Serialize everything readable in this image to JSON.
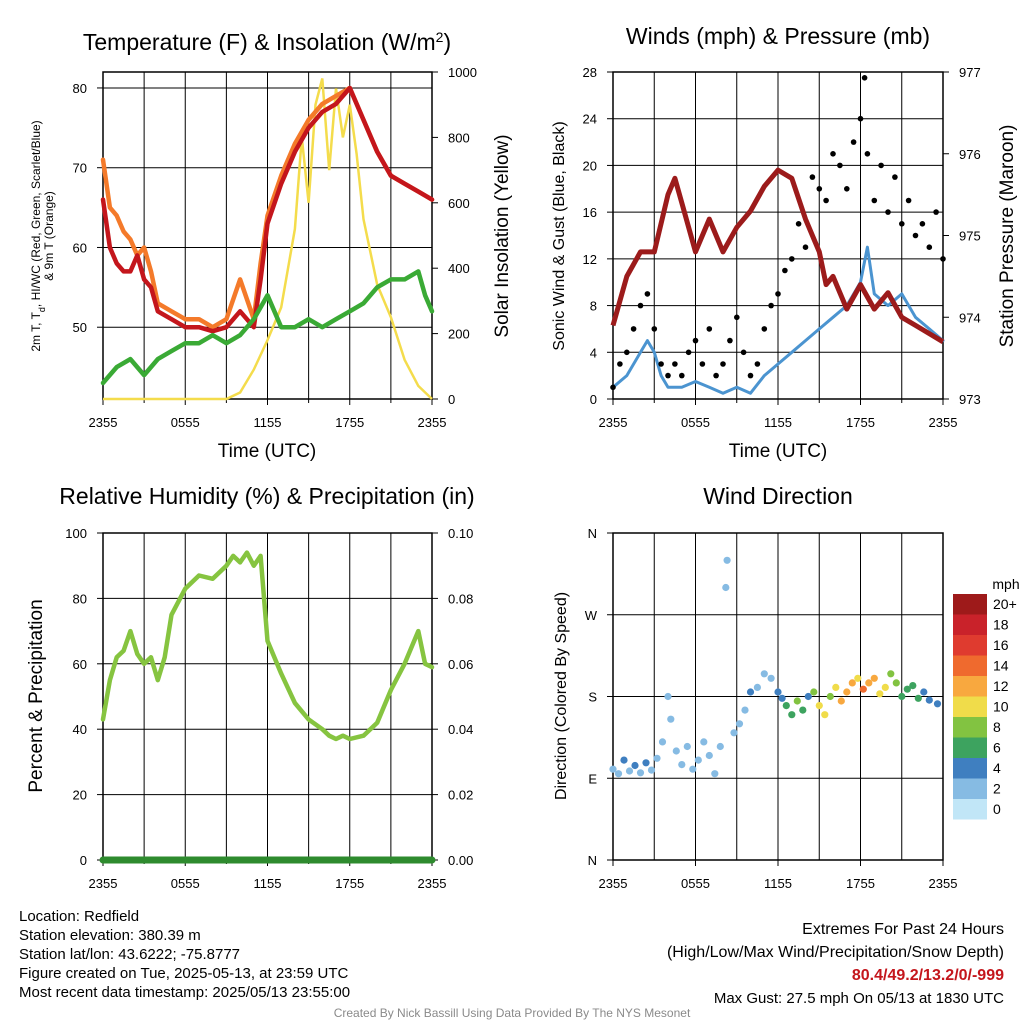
{
  "colors": {
    "temp": "#c4161c",
    "hiwc": "#d2232a",
    "t9m": "#f47a2a",
    "dew": "#3aaa35",
    "solar": "#f4dc4c",
    "sonic": "#4b94d0",
    "gust": "#000000",
    "pressure": "#9c1b1b",
    "rh": "#86c440",
    "precip": "#2e8b2e",
    "extremes": "#c4161c"
  },
  "time_ticks": [
    "2355",
    "0555",
    "1155",
    "1755",
    "2355"
  ],
  "chart_data": [
    {
      "type": "line",
      "title": "Temperature (F) & Insolation (W/m²)",
      "xlabel": "Time (UTC)",
      "ylabel_lines": [
        "2m T, T",
        "d",
        ", HI/WC (Red, Green, Scarlet/Blue)",
        "& 9m T (Orange)"
      ],
      "ylabel_right": "Solar Insolation (Yellow)",
      "ylim": [
        41,
        82
      ],
      "ylim_right": [
        0,
        1000
      ],
      "yticks": [
        50,
        60,
        70,
        80
      ],
      "yticks_right": [
        0,
        200,
        400,
        600,
        800,
        1000
      ],
      "series": [
        {
          "key": "t9m",
          "hours": [
            0,
            0.5,
            1,
            1.5,
            2,
            2.5,
            3,
            3.5,
            4,
            5,
            6,
            7,
            8,
            9,
            10,
            11,
            11.5,
            12,
            13,
            14,
            15,
            16,
            17,
            18,
            19,
            20,
            21,
            22,
            23,
            24
          ],
          "values": [
            71,
            65,
            64,
            62,
            61,
            59,
            60,
            57,
            53,
            52,
            51,
            51,
            50,
            51,
            56,
            51,
            58,
            64,
            69,
            73,
            76,
            78,
            79,
            80,
            76,
            72,
            69,
            68,
            67,
            66
          ]
        },
        {
          "key": "temp",
          "hours": [
            0,
            0.5,
            1,
            1.5,
            2,
            2.5,
            3,
            3.5,
            4,
            5,
            6,
            7,
            8,
            9,
            10,
            11,
            11.5,
            12,
            13,
            14,
            15,
            16,
            17,
            18,
            19,
            20,
            21,
            22,
            23,
            24
          ],
          "values": [
            66,
            60,
            58,
            57,
            57,
            59,
            56,
            55,
            52,
            51,
            50,
            50,
            49.5,
            50,
            52,
            50,
            56,
            63,
            68,
            72,
            75,
            77,
            78,
            80,
            76,
            72,
            69,
            68,
            67,
            66
          ]
        },
        {
          "key": "dew",
          "hours": [
            0,
            1,
            2,
            3,
            4,
            5,
            6,
            7,
            8,
            9,
            10,
            11,
            12,
            13,
            14,
            15,
            16,
            17,
            18,
            19,
            20,
            21,
            22,
            23,
            23.5,
            24
          ],
          "values": [
            43,
            45,
            46,
            44,
            46,
            47,
            48,
            48,
            49,
            48,
            49,
            51,
            54,
            50,
            50,
            51,
            50,
            51,
            52,
            53,
            55,
            56,
            56,
            57,
            54,
            52
          ]
        }
      ],
      "solar": {
        "hours": [
          0,
          9,
          10,
          11,
          12,
          13,
          14,
          14.5,
          15,
          15.5,
          16,
          16.5,
          17,
          17.5,
          18,
          18.5,
          19,
          20,
          21,
          22,
          23,
          24
        ],
        "values": [
          0,
          0,
          20,
          90,
          180,
          280,
          520,
          800,
          600,
          900,
          980,
          700,
          950,
          800,
          900,
          750,
          550,
          350,
          250,
          120,
          40,
          0
        ]
      }
    },
    {
      "type": "line",
      "title": "Winds (mph) & Pressure (mb)",
      "xlabel": "Time (UTC)",
      "ylabel": "Sonic Wind & Gust (Blue, Black)",
      "ylabel_right": "Station Pressure (Maroon)",
      "ylim": [
        0,
        28
      ],
      "ylim_right": [
        973,
        977
      ],
      "yticks": [
        0,
        4,
        8,
        12,
        16,
        20,
        24,
        28
      ],
      "yticks_right": [
        973,
        974,
        975,
        976,
        977
      ],
      "series": [
        {
          "key": "sonic",
          "hours": [
            0,
            1,
            2,
            2.5,
            3,
            3.5,
            4,
            5,
            6,
            7,
            8,
            9,
            10,
            11,
            12,
            13,
            14,
            15,
            16,
            17,
            18,
            18.5,
            19,
            20,
            21,
            22,
            23,
            24
          ],
          "values": [
            1,
            2,
            4,
            5,
            4,
            2,
            1,
            1,
            1.5,
            1,
            0.5,
            1,
            0.5,
            2,
            3,
            4,
            5,
            6,
            7,
            8,
            10,
            13,
            9,
            8,
            9,
            7,
            6,
            5
          ]
        },
        {
          "key": "pressure",
          "hours": [
            0,
            1,
            2,
            3,
            4,
            4.5,
            5,
            6,
            7,
            8,
            9,
            10,
            11,
            12,
            13,
            14,
            15,
            15.5,
            16,
            17,
            18,
            19,
            20,
            21,
            22,
            23,
            24
          ],
          "values": [
            973.9,
            974.5,
            974.8,
            974.8,
            975.5,
            975.7,
            975.4,
            974.8,
            975.2,
            974.8,
            975.1,
            975.3,
            975.6,
            975.8,
            975.7,
            975.2,
            974.8,
            974.4,
            974.5,
            974.1,
            974.4,
            974.1,
            974.3,
            974.0,
            973.9,
            973.8,
            973.7
          ]
        }
      ],
      "gust": {
        "hours": [
          0,
          0.5,
          1,
          1.5,
          2,
          2.5,
          3,
          3.5,
          4,
          4.5,
          5,
          5.5,
          6,
          6.5,
          7,
          7.5,
          8,
          8.5,
          9,
          9.5,
          10,
          10.5,
          11,
          11.5,
          12,
          12.5,
          13,
          13.5,
          14,
          14.5,
          15,
          15.5,
          16,
          16.5,
          17,
          17.5,
          18,
          18.3,
          18.5,
          19,
          19.5,
          20,
          20.5,
          21,
          21.5,
          22,
          22.5,
          23,
          23.5,
          24
        ],
        "values": [
          1,
          3,
          4,
          6,
          8,
          9,
          6,
          3,
          2,
          3,
          2,
          4,
          5,
          3,
          6,
          2,
          3,
          5,
          7,
          4,
          2,
          3,
          6,
          8,
          9,
          11,
          12,
          15,
          13,
          19,
          18,
          17,
          21,
          20,
          18,
          22,
          24,
          27.5,
          21,
          17,
          20,
          16,
          19,
          15,
          17,
          14,
          15,
          13,
          16,
          12
        ]
      }
    },
    {
      "type": "line",
      "title": "Relative Humidity (%) & Precipitation (in)",
      "ylabel": "Percent & Precipitation",
      "ylim": [
        0,
        100
      ],
      "ylim_right": [
        0,
        0.1
      ],
      "yticks": [
        0,
        20,
        40,
        60,
        80,
        100
      ],
      "yticks_right": [
        "0.00",
        "0.02",
        "0.04",
        "0.06",
        "0.08",
        "0.10"
      ],
      "series": [
        {
          "key": "rh",
          "hours": [
            0,
            0.5,
            1,
            1.5,
            2,
            2.5,
            3,
            3.5,
            4,
            4.5,
            5,
            6,
            7,
            8,
            9,
            9.5,
            10,
            10.5,
            11,
            11.5,
            12,
            13,
            14,
            15,
            16,
            16.5,
            17,
            17.5,
            18,
            19,
            20,
            21,
            22,
            22.5,
            23,
            23.5,
            24
          ],
          "values": [
            43,
            55,
            62,
            64,
            70,
            63,
            60,
            62,
            55,
            62,
            75,
            83,
            87,
            86,
            90,
            93,
            91,
            94,
            90,
            93,
            67,
            57,
            48,
            43,
            40,
            38,
            37,
            38,
            37,
            38,
            42,
            52,
            60,
            65,
            70,
            60,
            59
          ]
        },
        {
          "key": "precip",
          "hours": [
            0,
            24
          ],
          "values": [
            0,
            0
          ]
        }
      ]
    },
    {
      "type": "scatter",
      "title": "Wind Direction",
      "ylabel": "Direction (Colored By Speed)",
      "yticks": [
        "N",
        "E",
        "S",
        "W",
        "N"
      ],
      "legend": {
        "unit": "mph",
        "labels": [
          "20+",
          "18",
          "16",
          "14",
          "12",
          "10",
          "8",
          "6",
          "4",
          "2",
          "0"
        ],
        "colors": [
          "#9e1a1a",
          "#c9222a",
          "#df3b2f",
          "#ef6a2e",
          "#f8a83f",
          "#f0dc4a",
          "#82c341",
          "#3da35f",
          "#3f7fc0",
          "#86bbe3",
          "#c1e6f7"
        ]
      },
      "points": [
        [
          0,
          100,
          2
        ],
        [
          0.4,
          95,
          2
        ],
        [
          0.8,
          110,
          4
        ],
        [
          1.2,
          98,
          2
        ],
        [
          1.6,
          104,
          4
        ],
        [
          2,
          96,
          2
        ],
        [
          2.4,
          107,
          4
        ],
        [
          2.8,
          99,
          2
        ],
        [
          3.2,
          112,
          2
        ],
        [
          3.6,
          130,
          2
        ],
        [
          4,
          180,
          2
        ],
        [
          4.2,
          155,
          2
        ],
        [
          4.6,
          120,
          2
        ],
        [
          5,
          105,
          2
        ],
        [
          5.4,
          125,
          1
        ],
        [
          5.8,
          100,
          1
        ],
        [
          6.2,
          110,
          1
        ],
        [
          6.6,
          130,
          1
        ],
        [
          7,
          115,
          1
        ],
        [
          7.4,
          95,
          1
        ],
        [
          7.8,
          125,
          1
        ],
        [
          8.2,
          300,
          1
        ],
        [
          8.3,
          330,
          1
        ],
        [
          8.8,
          140,
          2
        ],
        [
          9.2,
          150,
          2
        ],
        [
          9.6,
          165,
          2
        ],
        [
          10,
          185,
          3
        ],
        [
          10.5,
          190,
          2
        ],
        [
          11,
          205,
          1
        ],
        [
          11.5,
          200,
          1
        ],
        [
          12,
          185,
          4
        ],
        [
          12.3,
          178,
          4
        ],
        [
          12.6,
          170,
          5
        ],
        [
          13,
          160,
          6
        ],
        [
          13.4,
          175,
          7
        ],
        [
          13.8,
          165,
          6
        ],
        [
          14.2,
          180,
          4
        ],
        [
          14.6,
          185,
          8
        ],
        [
          15,
          170,
          9
        ],
        [
          15.4,
          160,
          10
        ],
        [
          15.8,
          180,
          8
        ],
        [
          16.2,
          190,
          9
        ],
        [
          16.6,
          175,
          11
        ],
        [
          17,
          185,
          12
        ],
        [
          17.4,
          195,
          11
        ],
        [
          17.8,
          200,
          10
        ],
        [
          18.2,
          188,
          13
        ],
        [
          18.6,
          195,
          12
        ],
        [
          19,
          200,
          11
        ],
        [
          19.4,
          183,
          10
        ],
        [
          19.8,
          190,
          9
        ],
        [
          20.2,
          205,
          8
        ],
        [
          20.6,
          195,
          7
        ],
        [
          21,
          180,
          6
        ],
        [
          21.4,
          188,
          5
        ],
        [
          21.8,
          192,
          6
        ],
        [
          22.2,
          178,
          5
        ],
        [
          22.6,
          185,
          4
        ],
        [
          23,
          176,
          3
        ],
        [
          23.6,
          172,
          3
        ]
      ]
    }
  ],
  "info": {
    "location": "Location: Redfield",
    "elevation": "Station elevation: 380.39 m",
    "latlon": "Station lat/lon: 43.6222; -75.8777",
    "created": "Figure created on Tue, 2025-05-13, at 23:59 UTC",
    "recent": "Most recent data timestamp: 2025/05/13 23:55:00"
  },
  "extremes": {
    "title": "Extremes For Past 24 Hours",
    "subtitle": "(High/Low/Max Wind/Precipitation/Snow Depth)",
    "values": "80.4/49.2/13.2/0/-999",
    "gust": "Max Gust: 27.5 mph On 05/13 at 1830 UTC"
  },
  "credit": "Created By Nick Bassill Using Data Provided By The NYS Mesonet"
}
